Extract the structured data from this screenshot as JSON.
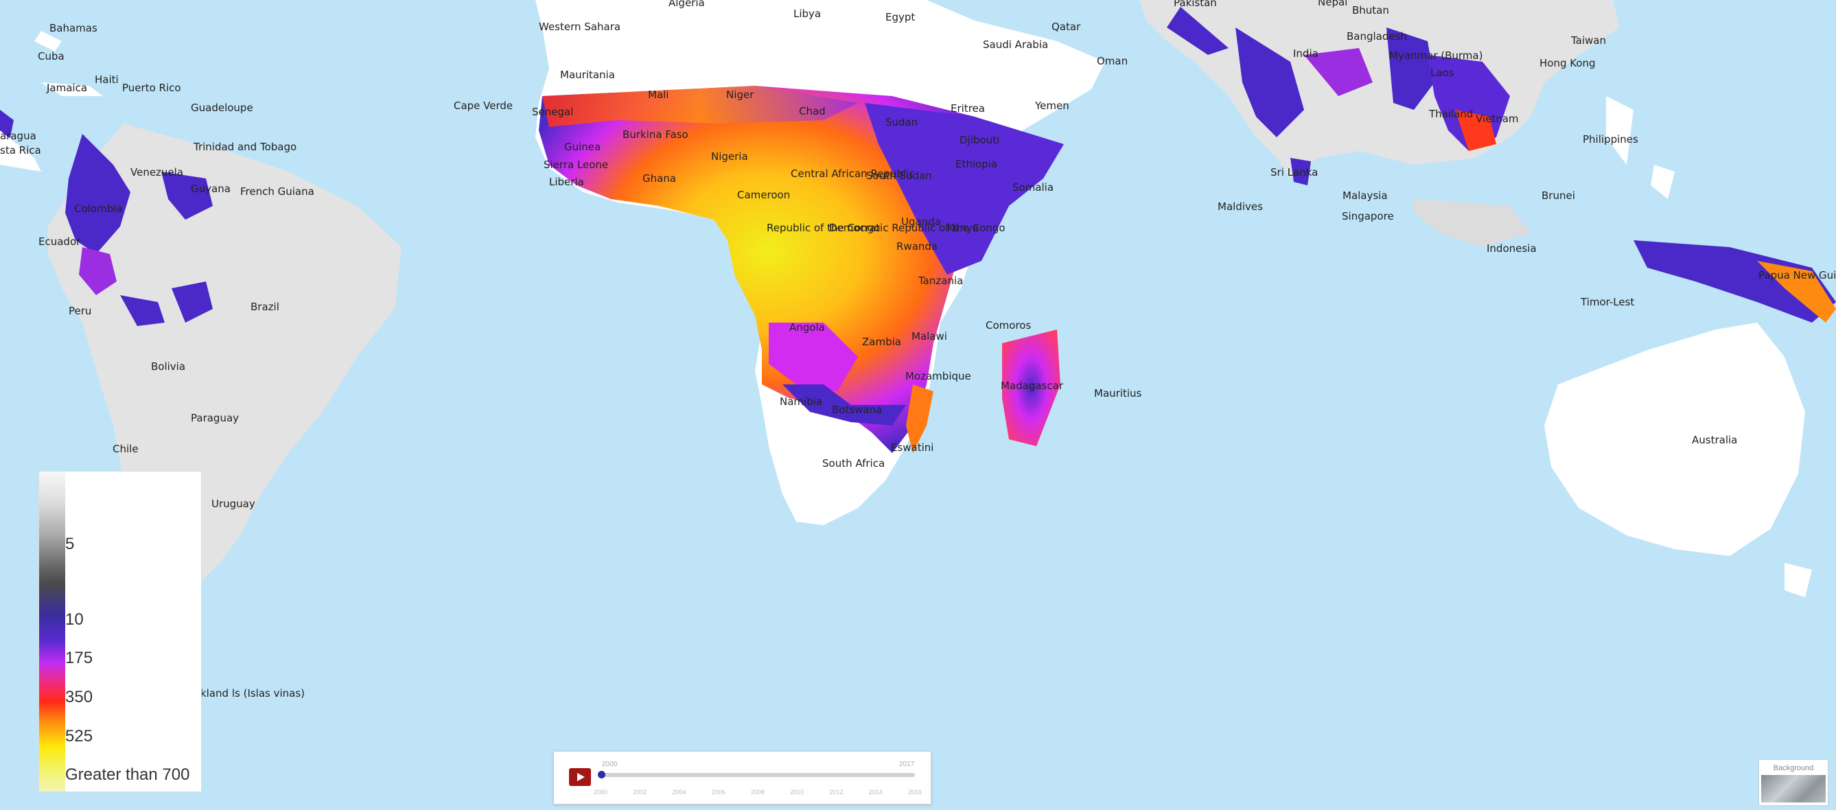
{
  "map": {
    "colors": {
      "ocean": "#bfe4f7",
      "land": "#ffffff",
      "landGrey": "#e3e3e3",
      "deepPurple": "#4b28c8",
      "purple": "#9b2ee0",
      "magenta": "#d12cf0",
      "red": "#ff2e1c",
      "orange": "#ff8a12",
      "yellow": "#f2ee1a",
      "paleYellow": "#f4f5a9"
    },
    "labels": [
      "Bahamas",
      "Cuba",
      "Jamaica",
      "Haiti",
      "Puerto Rico",
      "Guadeloupe",
      "Trinidad and Tobago",
      "Venezuela",
      "Guyana",
      "French Guiana",
      "Colombia",
      "Ecuador",
      "Peru",
      "Brazil",
      "Bolivia",
      "Paraguay",
      "Chile",
      "Uruguay",
      "kland ls (Islas vinas)",
      "Western Sahara",
      "Algeria",
      "Libya",
      "Egypt",
      "Mauritania",
      "Mali",
      "Niger",
      "Chad",
      "Sudan",
      "Eritrea",
      "Yemen",
      "Saudi Arabia",
      "Qatar",
      "Oman",
      "Cape Verde",
      "Senegal",
      "Guinea",
      "Sierra Leone",
      "Liberia",
      "Burkina Faso",
      "Ghana",
      "Nigeria",
      "Cameroon",
      "Central African Republic",
      "South Sudan",
      "Ethiopia",
      "Djibouti",
      "Somalia",
      "Kenya",
      "Uganda",
      "Rwanda",
      "Tanzania",
      "Republic of the Congo",
      "Democratic Republic of the Congo",
      "Angola",
      "Zambia",
      "Malawi",
      "Mozambique",
      "Comoros",
      "Madagascar",
      "Mauritius",
      "Namibia",
      "Botswana",
      "Eswatini",
      "South Africa",
      "Pakistan",
      "Nepal",
      "Bhutan",
      "India",
      "Bangladesh",
      "Myanmar (Burma)",
      "Laos",
      "Thailand",
      "Vietnam",
      "Sri Lanka",
      "Maldives",
      "Malaysia",
      "Singapore",
      "Brunei",
      "Indonesia",
      "Taiwan",
      "Hong Kong",
      "Philippines",
      "Timor-Lest",
      "Papua New Guinea",
      "Australia",
      "aragua",
      "sta Rica"
    ]
  },
  "legend": {
    "labels": [
      "5",
      "10",
      "175",
      "350",
      "525",
      "Greater than 700"
    ]
  },
  "timeline": {
    "start_year": "2000",
    "end_year": "2017",
    "ticks": [
      "2000",
      "2002",
      "2004",
      "2006",
      "2008",
      "2010",
      "2012",
      "2014",
      "2016"
    ],
    "progress": 0.0
  },
  "basemap": {
    "label": "Background"
  }
}
